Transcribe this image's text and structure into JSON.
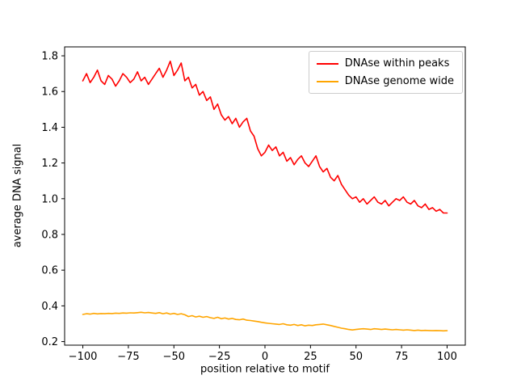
{
  "chart_data": {
    "type": "line",
    "title": "",
    "xlabel": "position relative to motif",
    "ylabel": "average DNA signal",
    "xlim": [
      -110,
      110
    ],
    "ylim": [
      0.18,
      1.85
    ],
    "xticks": [
      -100,
      -75,
      -50,
      -25,
      0,
      25,
      50,
      75,
      100
    ],
    "xticklabels": [
      "−100",
      "−75",
      "−50",
      "−25",
      "0",
      "25",
      "50",
      "75",
      "100"
    ],
    "yticks": [
      0.2,
      0.4,
      0.6,
      0.8,
      1.0,
      1.2,
      1.4,
      1.6,
      1.8
    ],
    "yticklabels": [
      "0.2",
      "0.4",
      "0.6",
      "0.8",
      "1.0",
      "1.2",
      "1.4",
      "1.6",
      "1.8"
    ],
    "grid": false,
    "legend_position": "upper right",
    "x": [
      -100,
      -98,
      -96,
      -94,
      -92,
      -90,
      -88,
      -86,
      -84,
      -82,
      -80,
      -78,
      -76,
      -74,
      -72,
      -70,
      -68,
      -66,
      -64,
      -62,
      -60,
      -58,
      -56,
      -54,
      -52,
      -50,
      -48,
      -46,
      -44,
      -42,
      -40,
      -38,
      -36,
      -34,
      -32,
      -30,
      -28,
      -26,
      -24,
      -22,
      -20,
      -18,
      -16,
      -14,
      -12,
      -10,
      -8,
      -6,
      -4,
      -2,
      0,
      2,
      4,
      6,
      8,
      10,
      12,
      14,
      16,
      18,
      20,
      22,
      24,
      26,
      28,
      30,
      32,
      34,
      36,
      38,
      40,
      42,
      44,
      46,
      48,
      50,
      52,
      54,
      56,
      58,
      60,
      62,
      64,
      66,
      68,
      70,
      72,
      74,
      76,
      78,
      80,
      82,
      84,
      86,
      88,
      90,
      92,
      94,
      96,
      98,
      100
    ],
    "series": [
      {
        "name": "DNAse within peaks",
        "color": "#ff0000",
        "values": [
          1.66,
          1.7,
          1.65,
          1.68,
          1.72,
          1.66,
          1.64,
          1.69,
          1.67,
          1.63,
          1.66,
          1.7,
          1.68,
          1.65,
          1.67,
          1.71,
          1.66,
          1.68,
          1.64,
          1.67,
          1.7,
          1.73,
          1.68,
          1.72,
          1.77,
          1.69,
          1.72,
          1.76,
          1.66,
          1.68,
          1.62,
          1.64,
          1.58,
          1.6,
          1.55,
          1.57,
          1.5,
          1.53,
          1.47,
          1.44,
          1.46,
          1.42,
          1.45,
          1.4,
          1.43,
          1.45,
          1.38,
          1.35,
          1.28,
          1.24,
          1.26,
          1.3,
          1.27,
          1.29,
          1.24,
          1.26,
          1.21,
          1.23,
          1.19,
          1.22,
          1.24,
          1.2,
          1.18,
          1.21,
          1.24,
          1.18,
          1.15,
          1.17,
          1.12,
          1.1,
          1.13,
          1.08,
          1.05,
          1.02,
          1.0,
          1.01,
          0.98,
          1.0,
          0.97,
          0.99,
          1.01,
          0.98,
          0.97,
          0.99,
          0.96,
          0.98,
          1.0,
          0.99,
          1.01,
          0.98,
          0.97,
          0.99,
          0.96,
          0.95,
          0.97,
          0.94,
          0.95,
          0.93,
          0.94,
          0.92,
          0.92
        ]
      },
      {
        "name": "DNAse genome wide",
        "color": "#ffa500",
        "values": [
          0.352,
          0.356,
          0.354,
          0.358,
          0.355,
          0.357,
          0.356,
          0.358,
          0.357,
          0.359,
          0.358,
          0.36,
          0.359,
          0.361,
          0.36,
          0.362,
          0.364,
          0.361,
          0.363,
          0.36,
          0.358,
          0.362,
          0.356,
          0.36,
          0.354,
          0.358,
          0.352,
          0.356,
          0.35,
          0.34,
          0.345,
          0.338,
          0.342,
          0.336,
          0.34,
          0.334,
          0.33,
          0.336,
          0.328,
          0.332,
          0.326,
          0.33,
          0.324,
          0.322,
          0.326,
          0.32,
          0.318,
          0.315,
          0.312,
          0.308,
          0.305,
          0.302,
          0.3,
          0.298,
          0.296,
          0.3,
          0.294,
          0.292,
          0.296,
          0.29,
          0.294,
          0.288,
          0.292,
          0.29,
          0.294,
          0.296,
          0.298,
          0.294,
          0.29,
          0.285,
          0.28,
          0.275,
          0.272,
          0.268,
          0.265,
          0.268,
          0.27,
          0.272,
          0.27,
          0.268,
          0.272,
          0.27,
          0.268,
          0.27,
          0.268,
          0.266,
          0.268,
          0.266,
          0.264,
          0.266,
          0.264,
          0.262,
          0.264,
          0.262,
          0.263,
          0.262,
          0.261,
          0.262,
          0.261,
          0.26,
          0.261
        ]
      }
    ]
  }
}
